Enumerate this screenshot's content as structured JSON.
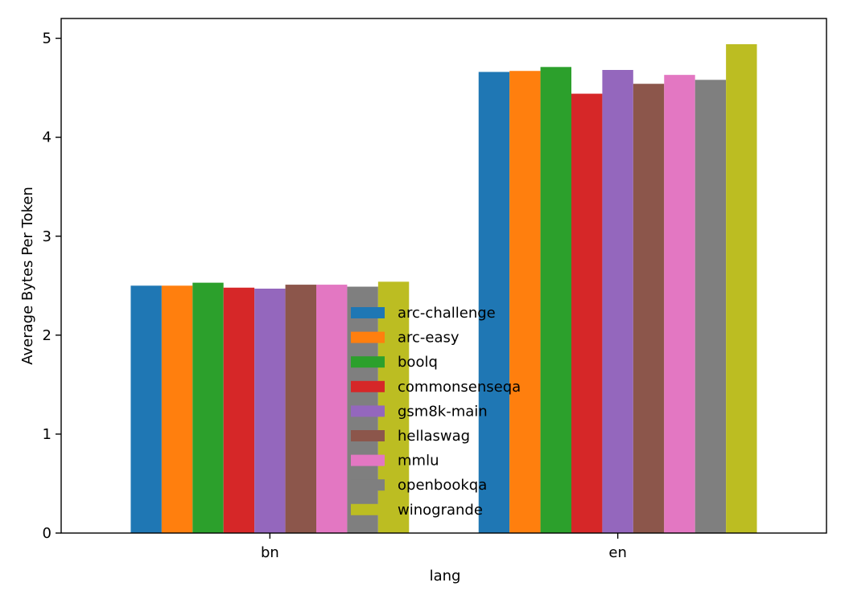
{
  "chart_data": {
    "type": "bar",
    "title": "",
    "xlabel": "lang",
    "ylabel": "Average Bytes Per Token",
    "categories": [
      "bn",
      "en"
    ],
    "ylim": [
      0,
      5.2
    ],
    "yticks": [
      0,
      1,
      2,
      3,
      4,
      5
    ],
    "grid": false,
    "legend_position": "center",
    "series": [
      {
        "name": "arc-challenge",
        "color": "#1f77b4",
        "values": [
          2.5,
          4.66
        ]
      },
      {
        "name": "arc-easy",
        "color": "#ff7f0e",
        "values": [
          2.5,
          4.67
        ]
      },
      {
        "name": "boolq",
        "color": "#2ca02c",
        "values": [
          2.53,
          4.71
        ]
      },
      {
        "name": "commonsenseqa",
        "color": "#d62728",
        "values": [
          2.48,
          4.44
        ]
      },
      {
        "name": "gsm8k-main",
        "color": "#9467bd",
        "values": [
          2.47,
          4.68
        ]
      },
      {
        "name": "hellaswag",
        "color": "#8c564b",
        "values": [
          2.51,
          4.54
        ]
      },
      {
        "name": "mmlu",
        "color": "#e377c2",
        "values": [
          2.51,
          4.63
        ]
      },
      {
        "name": "openbookqa",
        "color": "#7f7f7f",
        "values": [
          2.49,
          4.58
        ]
      },
      {
        "name": "winogrande",
        "color": "#bcbd22",
        "values": [
          2.54,
          4.94
        ]
      }
    ]
  }
}
